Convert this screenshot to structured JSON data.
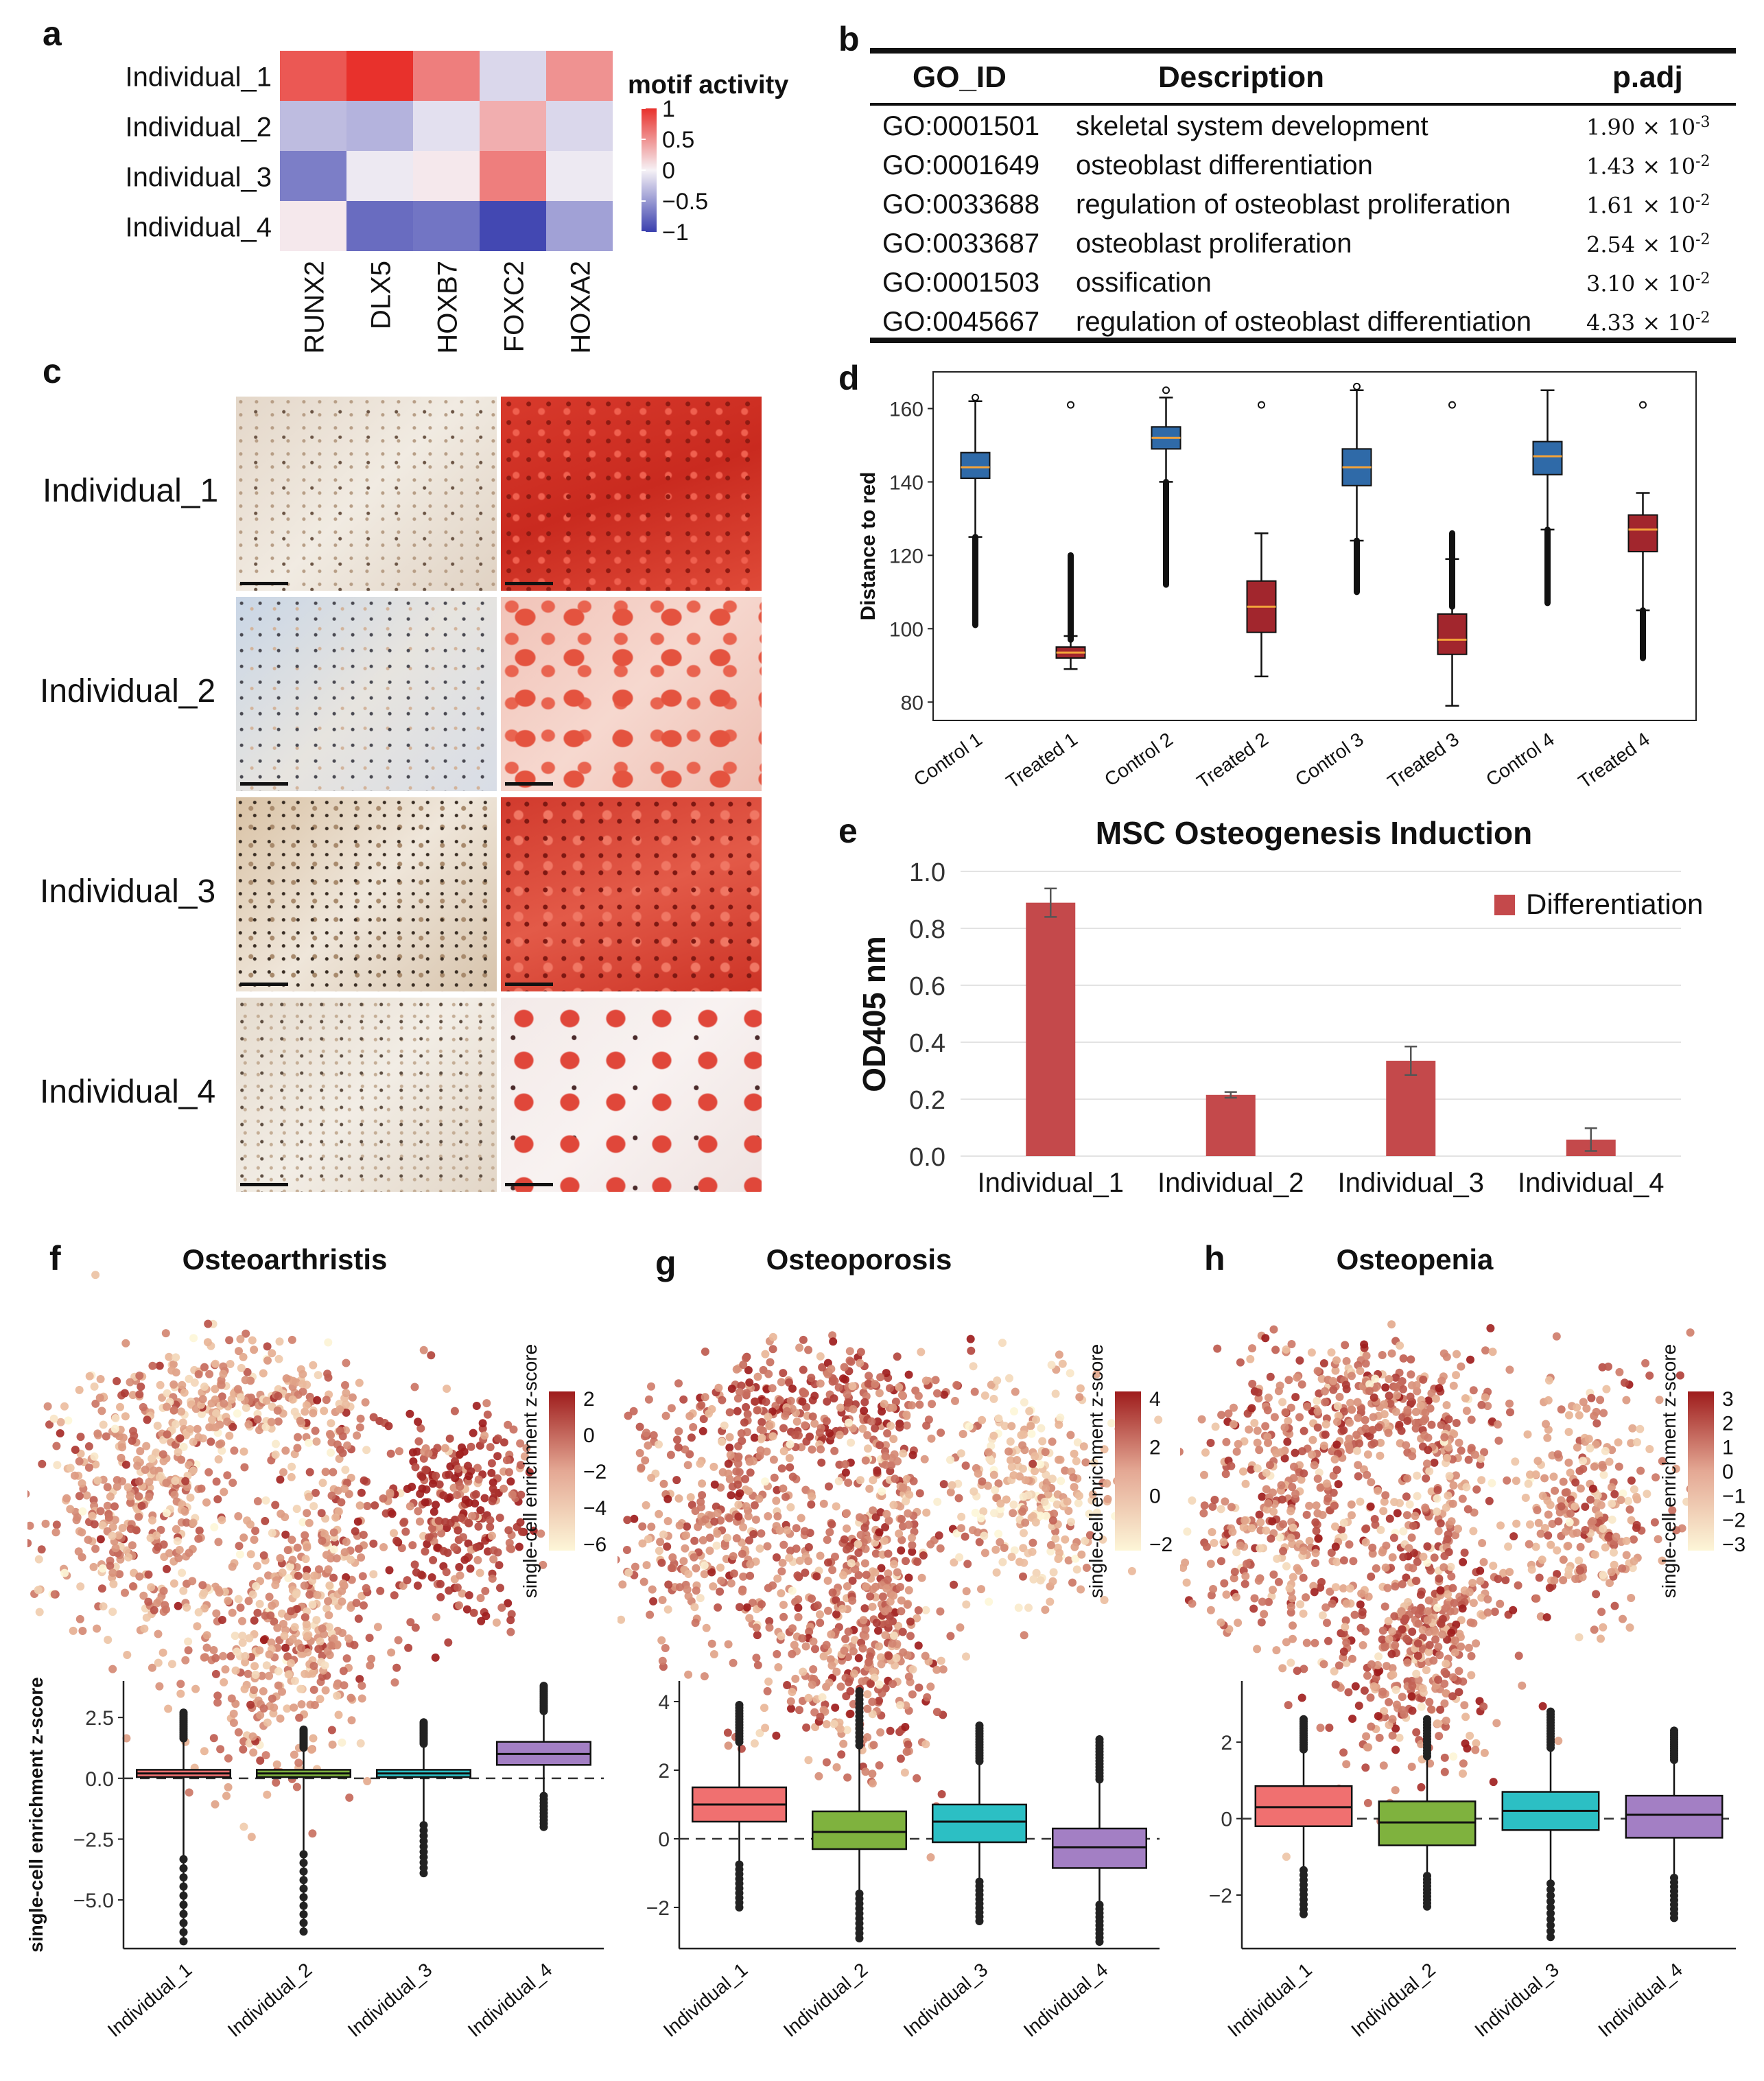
{
  "panel_labels": {
    "a": "a",
    "b": "b",
    "c": "c",
    "d": "d",
    "e": "e",
    "f": "f",
    "g": "g",
    "h": "h"
  },
  "colors": {
    "heat_red": "#e8312c",
    "heat_blue": "#3a3fae",
    "box_blue": "#2f6aa8",
    "box_red": "#a2262d",
    "median_orange": "#f2a23a",
    "bar_red": "#c4494b",
    "ind1": "#f07070",
    "ind2": "#7fb23e",
    "ind3": "#2cbfc4",
    "ind4": "#a37fc4",
    "umap_dark": "#9e1c1c",
    "umap_light": "#fdf6d8"
  },
  "heatmap": {
    "rows": [
      "Individual_1",
      "Individual_2",
      "Individual_3",
      "Individual_4"
    ],
    "cols": [
      "RUNX2",
      "DLX5",
      "HOXB7",
      "FOXC2",
      "HOXA2"
    ],
    "values": [
      [
        0.8,
        1.0,
        0.6,
        -0.15,
        0.5
      ],
      [
        -0.3,
        -0.35,
        -0.1,
        0.35,
        -0.15
      ],
      [
        -0.65,
        -0.05,
        0.05,
        0.6,
        -0.05
      ],
      [
        0.05,
        -0.75,
        -0.7,
        -0.95,
        -0.45
      ]
    ],
    "legend_title": "motif activity",
    "legend_ticks": [
      "1",
      "0.5",
      "0",
      "−0.5",
      "−1"
    ]
  },
  "go_table": {
    "headers": [
      "GO_ID",
      "Description",
      "p.adj"
    ],
    "rows": [
      {
        "id": "GO:0001501",
        "desc": "skeletal system development",
        "mant": "1.90 × 10",
        "exp": "-3"
      },
      {
        "id": "GO:0001649",
        "desc": "osteoblast differentiation",
        "mant": "1.43 × 10",
        "exp": "-2"
      },
      {
        "id": "GO:0033688",
        "desc": "regulation of osteoblast proliferation",
        "mant": "1.61 × 10",
        "exp": "-2"
      },
      {
        "id": "GO:0033687",
        "desc": "osteoblast proliferation",
        "mant": "2.54 × 10",
        "exp": "-2"
      },
      {
        "id": "GO:0001503",
        "desc": "ossification",
        "mant": "3.10 × 10",
        "exp": "-2"
      },
      {
        "id": "GO:0045667",
        "desc": "regulation of osteoblast differentiation",
        "mant": "4.33 × 10",
        "exp": "-2"
      }
    ]
  },
  "stain_panel": {
    "rows": [
      "Individual_1",
      "Individual_2",
      "Individual_3",
      "Individual_4"
    ]
  },
  "chart_data": [
    {
      "id": "d",
      "type": "box",
      "title": "",
      "ylabel": "Distance to red",
      "ylim": [
        75,
        170
      ],
      "yticks": [
        80,
        100,
        120,
        140,
        160
      ],
      "categories": [
        "Control 1",
        "Treated 1",
        "Control 2",
        "Treated 2",
        "Control 3",
        "Treated 3",
        "Control 4",
        "Treated 4"
      ],
      "group": [
        "control",
        "treated",
        "control",
        "treated",
        "control",
        "treated",
        "control",
        "treated"
      ],
      "q1": [
        141,
        92,
        149,
        99,
        139,
        93,
        142,
        121
      ],
      "median": [
        144,
        93.5,
        152,
        106,
        144,
        97,
        147,
        127
      ],
      "q3": [
        148,
        95,
        155,
        113,
        149,
        104,
        151,
        131
      ],
      "whisker_low": [
        125,
        89,
        140,
        87,
        124,
        79,
        127,
        105
      ],
      "whisker_high": [
        162,
        98,
        163,
        126,
        165,
        119,
        165,
        137
      ],
      "outlier_low": [
        101,
        null,
        112,
        null,
        110,
        null,
        107,
        92
      ],
      "outlier_high": [
        null,
        120,
        null,
        null,
        null,
        126,
        null,
        null
      ],
      "stray_points": [
        163,
        161,
        165,
        161,
        166,
        161,
        null,
        161
      ]
    },
    {
      "id": "e",
      "type": "bar",
      "title": "MSC Osteogenesis Induction",
      "ylabel": "OD405 nm",
      "ylim": [
        0,
        1.0
      ],
      "yticks": [
        "0.0",
        "0.2",
        "0.4",
        "0.6",
        "0.8",
        "1.0"
      ],
      "categories": [
        "Individual_1",
        "Individual_2",
        "Individual_3",
        "Individual_4"
      ],
      "series": [
        {
          "name": "Differentiation",
          "values": [
            0.89,
            0.215,
            0.335,
            0.058
          ],
          "errors": [
            0.05,
            0.01,
            0.05,
            0.04
          ]
        }
      ]
    },
    {
      "id": "f",
      "type": "scatter",
      "title": "Osteoarthristis",
      "colorbar_label": "single-cell enrichment z-score",
      "colorbar_ticks": [
        "2",
        "0",
        "−2",
        "−4",
        "−6"
      ],
      "box": {
        "ylabel": "single-cell enrichment z-score",
        "yticks": [
          "2.5",
          "0.0",
          "−2.5",
          "−5.0"
        ],
        "ylim": [
          -7,
          4
        ],
        "categories": [
          "Individual_1",
          "Individual_2",
          "Individual_3",
          "Individual_4"
        ],
        "q1": [
          0.05,
          0.05,
          0.05,
          0.55
        ],
        "median": [
          0.2,
          0.2,
          0.2,
          1.0
        ],
        "q3": [
          0.35,
          0.35,
          0.35,
          1.5
        ],
        "wlo": [
          -0.2,
          -0.2,
          -0.2,
          -0.3
        ],
        "whi": [
          2.7,
          2.0,
          2.3,
          3.8
        ],
        "min_out": [
          -6.7,
          -6.3,
          -3.9,
          -2.0
        ]
      }
    },
    {
      "id": "g",
      "type": "scatter",
      "title": "Osteoporosis",
      "colorbar_label": "single-cell enrichment z-score",
      "colorbar_ticks": [
        "4",
        "2",
        "0",
        "−2"
      ],
      "box": {
        "ylabel": "",
        "yticks": [
          "4",
          "2",
          "0",
          "−2"
        ],
        "ylim": [
          -3.2,
          4.6
        ],
        "categories": [
          "Individual_1",
          "Individual_2",
          "Individual_3",
          "Individual_4"
        ],
        "q1": [
          0.5,
          -0.3,
          -0.1,
          -0.85
        ],
        "median": [
          1.0,
          0.2,
          0.5,
          -0.25
        ],
        "q3": [
          1.5,
          0.8,
          1.0,
          0.3
        ],
        "wlo": [
          -1.0,
          -1.8,
          -1.5,
          -2.3
        ],
        "whi": [
          3.9,
          4.3,
          3.3,
          2.9
        ],
        "min_out": [
          -2.0,
          -2.9,
          -2.4,
          -3.0
        ]
      }
    },
    {
      "id": "h",
      "type": "scatter",
      "title": "Osteopenia",
      "colorbar_label": "single-cell enrichment z-score",
      "colorbar_ticks": [
        "3",
        "2",
        "1",
        "0",
        "−1",
        "−2",
        "−3"
      ],
      "box": {
        "ylabel": "",
        "yticks": [
          "2",
          "0",
          "−2"
        ],
        "ylim": [
          -3.4,
          3.6
        ],
        "categories": [
          "Individual_1",
          "Individual_2",
          "Individual_3",
          "Individual_4"
        ],
        "q1": [
          -0.2,
          -0.7,
          -0.3,
          -0.5
        ],
        "median": [
          0.3,
          -0.1,
          0.2,
          0.1
        ],
        "q3": [
          0.85,
          0.45,
          0.7,
          0.6
        ],
        "wlo": [
          -1.8,
          -2.3,
          -1.9,
          -2.1
        ],
        "whi": [
          2.6,
          2.6,
          2.8,
          2.3
        ],
        "min_out": [
          -2.5,
          -2.3,
          -3.1,
          -2.6
        ]
      }
    }
  ]
}
